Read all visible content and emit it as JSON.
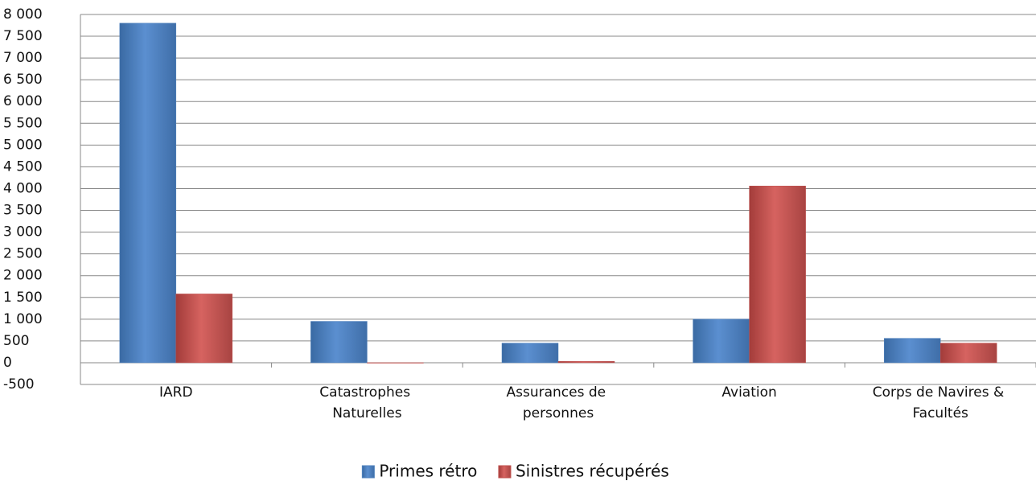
{
  "chart_data": {
    "type": "bar",
    "categories": [
      "IARD",
      "Catastrophes Naturelles",
      "Assurances de personnes",
      "Aviation",
      "Corps de Navires & Facultés"
    ],
    "series": [
      {
        "name": "Primes rétro",
        "color": "#4f81bd",
        "values": [
          7800,
          950,
          450,
          1000,
          560
        ]
      },
      {
        "name": "Sinistres récupérés",
        "color": "#c0504d",
        "values": [
          1580,
          -10,
          30,
          4060,
          450
        ]
      }
    ],
    "ylim": [
      -500,
      8000
    ],
    "yticks": [
      -500,
      0,
      500,
      {
        "value": 1000,
        "label": "1 000"
      },
      {
        "value": 1500,
        "label": "1 500"
      },
      {
        "value": 2000,
        "label": "2 000"
      },
      {
        "value": 2500,
        "label": "2 500"
      },
      {
        "value": 3000,
        "label": "3 000"
      },
      {
        "value": 3500,
        "label": "3 500"
      },
      {
        "value": 4000,
        "label": "4 000"
      },
      {
        "value": 4500,
        "label": "4 500"
      },
      {
        "value": 5000,
        "label": "5 000"
      },
      {
        "value": 5500,
        "label": "5 500"
      },
      {
        "value": 6000,
        "label": "6 000"
      },
      {
        "value": 6500,
        "label": "6 500"
      },
      {
        "value": 7000,
        "label": "7 000"
      },
      {
        "value": 7500,
        "label": "7 500"
      },
      {
        "value": 8000,
        "label": "8 000"
      }
    ],
    "grid": true,
    "legend": "bottom"
  }
}
